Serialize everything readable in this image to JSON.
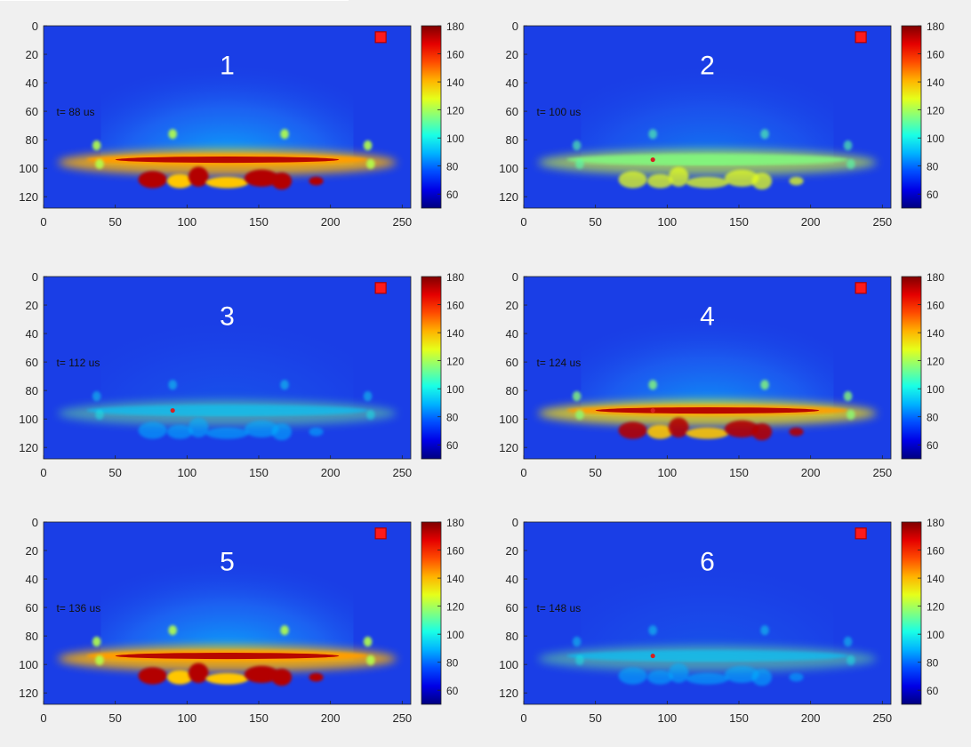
{
  "chart_data": [
    {
      "type": "heatmap",
      "label": "1",
      "time_label": "t= 88 us",
      "xlim": [
        0,
        256
      ],
      "ylim": [
        0,
        128
      ],
      "x_ticks": [
        0,
        50,
        100,
        150,
        200,
        250
      ],
      "y_ticks": [
        0,
        20,
        40,
        60,
        80,
        100,
        120
      ],
      "colorbar": {
        "min": 50,
        "max": 180,
        "ticks": [
          60,
          80,
          100,
          120,
          140,
          160,
          180
        ]
      },
      "intensity": 1.0,
      "marker": {
        "x": 235,
        "y": 8
      }
    },
    {
      "type": "heatmap",
      "label": "2",
      "time_label": "t= 100 us",
      "xlim": [
        0,
        256
      ],
      "ylim": [
        0,
        128
      ],
      "x_ticks": [
        0,
        50,
        100,
        150,
        200,
        250
      ],
      "y_ticks": [
        0,
        20,
        40,
        60,
        80,
        100,
        120
      ],
      "colorbar": {
        "min": 50,
        "max": 180,
        "ticks": [
          60,
          80,
          100,
          120,
          140,
          160,
          180
        ]
      },
      "intensity": 0.55,
      "marker": {
        "x": 235,
        "y": 8
      },
      "point": {
        "x": 90,
        "y": 94
      }
    },
    {
      "type": "heatmap",
      "label": "3",
      "time_label": "t= 112 us",
      "xlim": [
        0,
        256
      ],
      "ylim": [
        0,
        128
      ],
      "x_ticks": [
        0,
        50,
        100,
        150,
        200,
        250
      ],
      "y_ticks": [
        0,
        20,
        40,
        60,
        80,
        100,
        120
      ],
      "colorbar": {
        "min": 50,
        "max": 180,
        "ticks": [
          60,
          80,
          100,
          120,
          140,
          160,
          180
        ]
      },
      "intensity": 0.2,
      "marker": {
        "x": 235,
        "y": 8
      },
      "point": {
        "x": 90,
        "y": 94
      }
    },
    {
      "type": "heatmap",
      "label": "4",
      "time_label": "t= 124 us",
      "xlim": [
        0,
        256
      ],
      "ylim": [
        0,
        128
      ],
      "x_ticks": [
        0,
        50,
        100,
        150,
        200,
        250
      ],
      "y_ticks": [
        0,
        20,
        40,
        60,
        80,
        100,
        120
      ],
      "colorbar": {
        "min": 50,
        "max": 180,
        "ticks": [
          60,
          80,
          100,
          120,
          140,
          160,
          180
        ]
      },
      "intensity": 0.8,
      "marker": {
        "x": 235,
        "y": 8
      },
      "point": {
        "x": 90,
        "y": 94
      }
    },
    {
      "type": "heatmap",
      "label": "5",
      "time_label": "t= 136 us",
      "xlim": [
        0,
        256
      ],
      "ylim": [
        0,
        128
      ],
      "x_ticks": [
        0,
        50,
        100,
        150,
        200,
        250
      ],
      "y_ticks": [
        0,
        20,
        40,
        60,
        80,
        100,
        120
      ],
      "colorbar": {
        "min": 50,
        "max": 180,
        "ticks": [
          60,
          80,
          100,
          120,
          140,
          160,
          180
        ]
      },
      "intensity": 1.0,
      "marker": {
        "x": 235,
        "y": 8
      }
    },
    {
      "type": "heatmap",
      "label": "6",
      "time_label": "t= 148 us",
      "xlim": [
        0,
        256
      ],
      "ylim": [
        0,
        128
      ],
      "x_ticks": [
        0,
        50,
        100,
        150,
        200,
        250
      ],
      "y_ticks": [
        0,
        20,
        40,
        60,
        80,
        100,
        120
      ],
      "colorbar": {
        "min": 50,
        "max": 180,
        "ticks": [
          60,
          80,
          100,
          120,
          140,
          160,
          180
        ]
      },
      "intensity": 0.2,
      "marker": {
        "x": 235,
        "y": 8
      },
      "point": {
        "x": 90,
        "y": 94
      }
    }
  ],
  "colors": {
    "background": "#f0f0f0",
    "field_base": "#1a3ee6",
    "marker_fill": "#ff1a1a",
    "marker_edge": "#b00000",
    "panel_label": "#ffffff",
    "axis": "#262626"
  }
}
